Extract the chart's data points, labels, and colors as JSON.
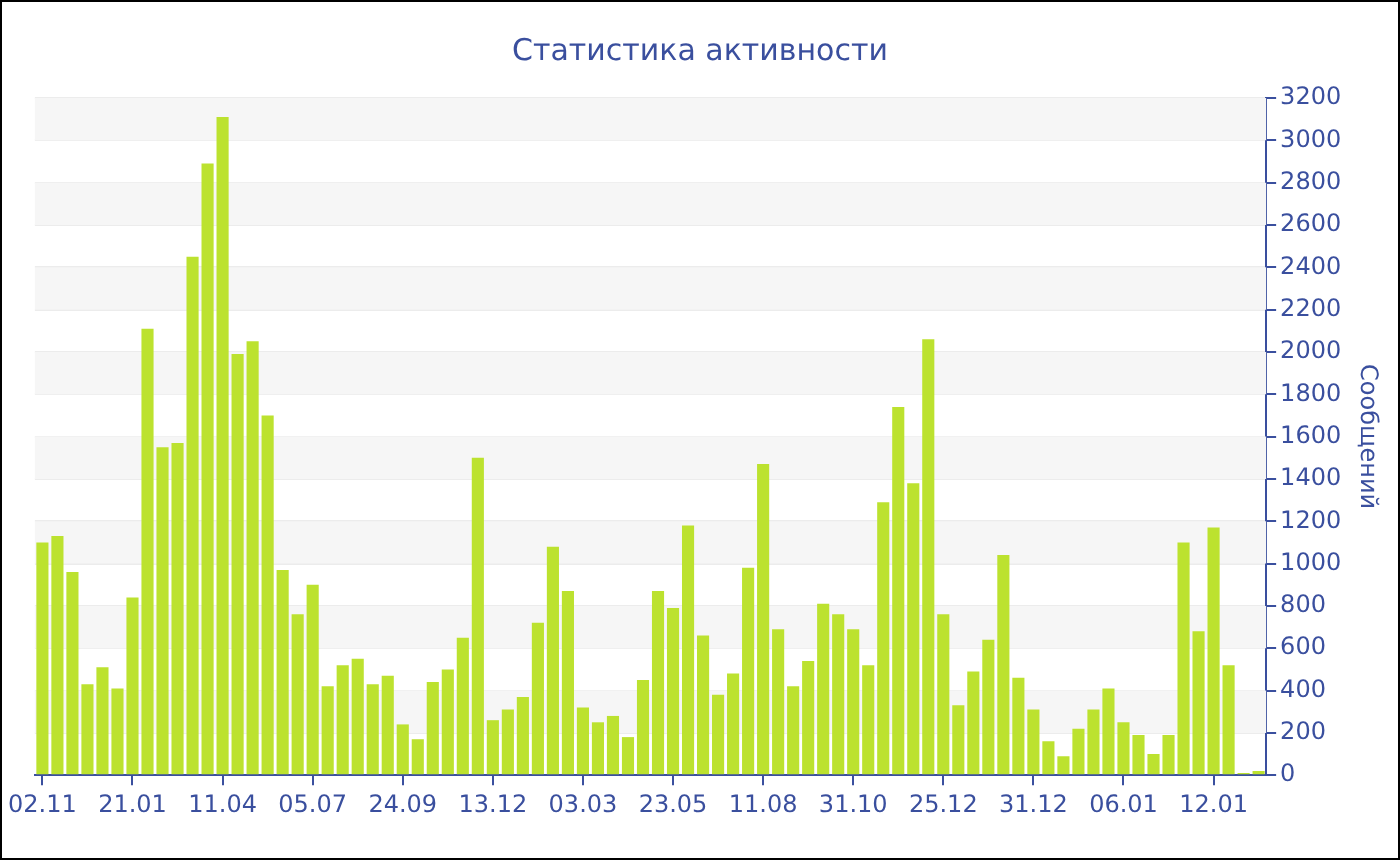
{
  "chart_data": {
    "type": "bar",
    "title": "Статистика активности",
    "ylabel": "Сообщений",
    "categories": [
      "02.11",
      null,
      null,
      null,
      null,
      null,
      "21.01",
      null,
      null,
      null,
      null,
      null,
      "11.04",
      null,
      null,
      null,
      null,
      null,
      "05.07",
      null,
      null,
      null,
      null,
      null,
      "24.09",
      null,
      null,
      null,
      null,
      null,
      "13.12",
      null,
      null,
      null,
      null,
      null,
      "03.03",
      null,
      null,
      null,
      null,
      null,
      "23.05",
      null,
      null,
      null,
      null,
      null,
      "11.08",
      null,
      null,
      null,
      null,
      null,
      "31.10",
      null,
      null,
      null,
      null,
      null,
      "25.12",
      null,
      null,
      null,
      null,
      null,
      "31.12",
      null,
      null,
      null,
      null,
      null,
      "06.01",
      null,
      null,
      null,
      null,
      null,
      "12.01",
      null,
      null,
      null
    ],
    "values": [
      1100,
      1130,
      960,
      430,
      510,
      410,
      840,
      2110,
      1550,
      1570,
      2450,
      2890,
      3110,
      1990,
      2050,
      1700,
      970,
      760,
      900,
      420,
      520,
      550,
      430,
      470,
      240,
      170,
      440,
      500,
      650,
      1500,
      260,
      310,
      370,
      720,
      1080,
      870,
      320,
      250,
      280,
      180,
      450,
      870,
      790,
      1180,
      660,
      380,
      480,
      980,
      1470,
      690,
      420,
      540,
      810,
      760,
      690,
      520,
      1290,
      1740,
      1380,
      2060,
      760,
      330,
      490,
      640,
      1040,
      460,
      310,
      160,
      90,
      220,
      310,
      410,
      250,
      190,
      100,
      190,
      1100,
      680,
      1170,
      520,
      10,
      20
    ],
    "color": "#bce22f",
    "ylim": [
      0,
      3200
    ],
    "yticks": [
      0,
      200,
      400,
      600,
      800,
      1000,
      1200,
      1400,
      1600,
      1800,
      2000,
      2200,
      2400,
      2600,
      2800,
      3000,
      3200
    ],
    "grid": "y",
    "legend": false
  }
}
